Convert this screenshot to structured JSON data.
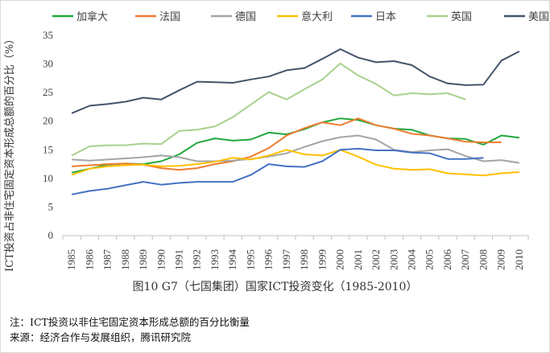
{
  "chart_data": {
    "type": "line",
    "title": "图10 G7（七国集团）国家ICT投资变化（1985-2010）",
    "ylabel": "ICT投资占非住宅固定资本形成总额的百分比（%）",
    "xlabel": "",
    "ylim": [
      0,
      35
    ],
    "yticks": [
      0,
      5,
      10,
      15,
      20,
      25,
      30,
      35
    ],
    "grid": false,
    "legend_position": "top",
    "x": [
      "1985",
      "1986",
      "1987",
      "1988",
      "1989",
      "1990",
      "1991",
      "1992",
      "1993",
      "1994",
      "1995",
      "1996",
      "1997",
      "1998",
      "1999",
      "2000",
      "2001",
      "2002",
      "2003",
      "2004",
      "2005",
      "2006",
      "2007",
      "2008",
      "2009",
      "2010"
    ],
    "series": [
      {
        "name": "加拿大",
        "color": "#1fa83c",
        "values": [
          11.0,
          11.7,
          12.4,
          12.6,
          12.5,
          13.0,
          14.2,
          16.2,
          17.0,
          16.6,
          16.8,
          18.0,
          17.7,
          18.6,
          19.8,
          20.5,
          20.2,
          19.3,
          18.7,
          18.5,
          17.5,
          17.0,
          16.9,
          15.9,
          17.5,
          17.1
        ]
      },
      {
        "name": "法国",
        "color": "#ed7d31",
        "values": [
          12.1,
          12.3,
          12.5,
          12.6,
          12.4,
          11.8,
          11.5,
          11.8,
          12.5,
          13.0,
          13.8,
          15.3,
          17.5,
          18.8,
          19.8,
          19.3,
          20.5,
          19.3,
          18.7,
          17.8,
          17.5,
          17.0,
          16.4,
          16.3,
          16.3,
          null
        ]
      },
      {
        "name": "德国",
        "color": "#a5a5a5",
        "values": [
          13.3,
          13.1,
          13.3,
          13.5,
          13.7,
          14.0,
          13.7,
          13.0,
          13.0,
          13.1,
          13.4,
          13.8,
          14.4,
          15.5,
          16.5,
          17.2,
          17.5,
          16.8,
          15.0,
          14.6,
          14.9,
          15.1,
          13.9,
          13.0,
          13.2,
          12.7
        ]
      },
      {
        "name": "意大利",
        "color": "#ffc000",
        "values": [
          10.6,
          11.7,
          12.1,
          12.3,
          12.4,
          12.1,
          12.2,
          12.5,
          12.9,
          13.6,
          13.3,
          14.0,
          15.0,
          14.2,
          14.0,
          15.0,
          13.8,
          12.4,
          11.7,
          11.5,
          11.6,
          10.9,
          10.7,
          10.5,
          10.9,
          11.1
        ]
      },
      {
        "name": "日本",
        "color": "#4472c4",
        "values": [
          7.2,
          7.8,
          8.2,
          8.8,
          9.4,
          8.9,
          9.2,
          9.4,
          9.4,
          9.4,
          10.6,
          12.5,
          12.1,
          12.0,
          13.0,
          15.0,
          15.2,
          14.9,
          14.9,
          14.5,
          14.4,
          13.4,
          13.4,
          13.6,
          null,
          null
        ]
      },
      {
        "name": "英国",
        "color": "#a9d18e",
        "values": [
          14.0,
          15.6,
          15.8,
          15.8,
          16.1,
          16.0,
          18.3,
          18.5,
          19.1,
          20.7,
          22.9,
          25.1,
          23.8,
          25.6,
          27.3,
          30.1,
          28.0,
          26.5,
          24.5,
          24.9,
          24.7,
          24.9,
          23.8,
          null,
          null,
          null
        ]
      },
      {
        "name": "美国",
        "color": "#44546a",
        "values": [
          21.4,
          22.7,
          23.0,
          23.4,
          24.1,
          23.8,
          25.4,
          26.9,
          26.8,
          26.7,
          27.3,
          27.8,
          28.9,
          29.3,
          30.9,
          32.6,
          31.1,
          30.3,
          30.5,
          29.8,
          27.8,
          26.6,
          26.3,
          26.4,
          30.6,
          32.2
        ]
      }
    ]
  },
  "caption": "图10 G7（七国集团）国家ICT投资变化（1985-2010）",
  "notes": {
    "note": "注：ICT投资以非住宅固定资本形成总额的百分比衡量",
    "source": "来源：经济合作与发展组织，腾讯研究院"
  }
}
